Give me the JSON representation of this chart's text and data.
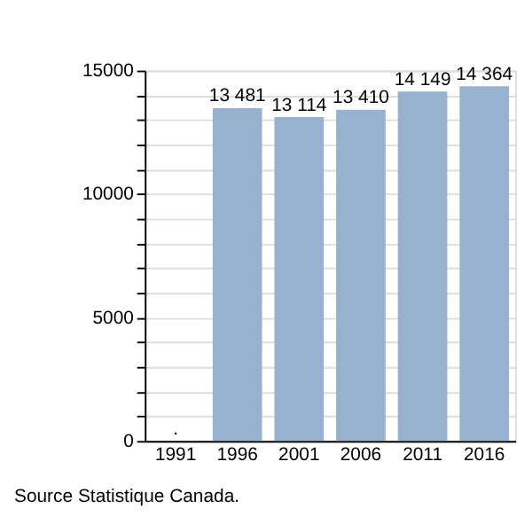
{
  "chart_data": {
    "type": "bar",
    "categories": [
      "1991",
      "1996",
      "2001",
      "2006",
      "2011",
      "2016"
    ],
    "values": [
      null,
      13481,
      13114,
      13410,
      14149,
      14364
    ],
    "value_labels": [
      ".",
      "13 481",
      "13 114",
      "13 410",
      "14 149",
      "14 364"
    ],
    "color": "#98b1cf",
    "ylim": [
      0,
      15000
    ],
    "yticks": [
      0,
      {
        "value": 1000,
        "label": null
      },
      {
        "value": 2000,
        "label": null
      },
      {
        "value": 3000,
        "label": null
      },
      {
        "value": 4000,
        "label": null
      },
      5000,
      {
        "value": 6000,
        "label": null
      },
      {
        "value": 7000,
        "label": null
      },
      {
        "value": 8000,
        "label": null
      },
      {
        "value": 9000,
        "label": null
      },
      10000,
      {
        "value": 11000,
        "label": null
      },
      {
        "value": 12000,
        "label": null
      },
      {
        "value": 13000,
        "label": null
      },
      {
        "value": 14000,
        "label": null
      },
      15000
    ],
    "grid": true,
    "annotations": [
      "Source Statistique Canada."
    ]
  }
}
